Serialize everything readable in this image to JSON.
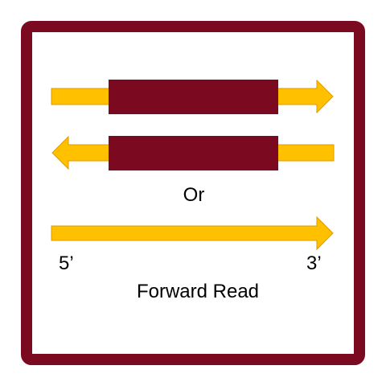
{
  "colors": {
    "frame": "#7b0a20",
    "arrow": "#ffc000",
    "arrow_outline": "#e09a00",
    "insert": "#7b0a20",
    "text": "#000000"
  },
  "labels": {
    "or": "Or",
    "five_prime": "5’",
    "three_prime": "3’",
    "forward_read": "Forward Read"
  },
  "constructs": [
    {
      "arrow_direction": "right",
      "has_insert": true
    },
    {
      "arrow_direction": "left",
      "has_insert": true
    },
    {
      "arrow_direction": "right",
      "has_insert": false
    }
  ]
}
